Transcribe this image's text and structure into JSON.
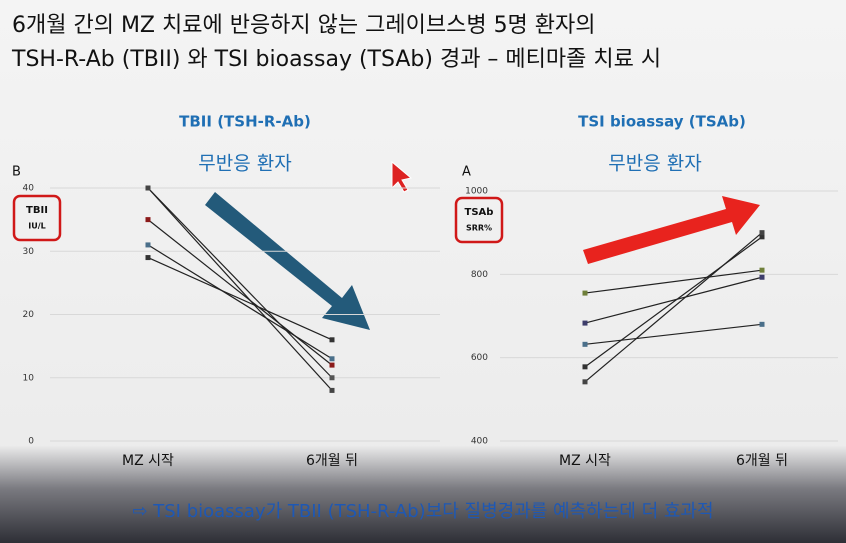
{
  "title_lines": [
    "6개월 간의 MZ 치료에 반응하지 않는 그레이브스병 5명 환자의",
    "TSH-R-Ab (TBII) 와 TSI bioassay (TSAb) 경과 –  메티마졸 치료 시"
  ],
  "footer": "⇨ TSI bioassay가 TBII (TSH-R-Ab)보다 질병경과를 예측하는데 더 효과적",
  "chart_data": [
    {
      "type": "line",
      "panel_label": "B",
      "title": "TBII (TSH-R-Ab)",
      "annotation": "무반응 환자",
      "y_label": [
        "TBII",
        "IU/L"
      ],
      "categories": [
        "MZ 시작",
        "6개월 뒤"
      ],
      "ylim": [
        0,
        40
      ],
      "yticks": [
        0,
        10,
        20,
        30,
        40
      ],
      "grid": true,
      "series": [
        {
          "color": "#555555",
          "values": [
            40,
            10
          ]
        },
        {
          "color": "#444444",
          "values": [
            40,
            8
          ]
        },
        {
          "color": "#8b1a1a",
          "values": [
            35,
            12
          ]
        },
        {
          "color": "#4a6f8a",
          "values": [
            31,
            13
          ]
        },
        {
          "color": "#333333",
          "values": [
            29,
            16
          ]
        }
      ]
    },
    {
      "type": "line",
      "panel_label": "A",
      "title": "TSI bioassay (TSAb)",
      "annotation": "무반응 환자",
      "y_label": [
        "TSAb",
        "SRR%"
      ],
      "categories": [
        "MZ 시작",
        "6개월 뒤"
      ],
      "ylim": [
        400,
        1000
      ],
      "yticks": [
        400,
        600,
        800,
        1000
      ],
      "grid": true,
      "series": [
        {
          "color": "#6f7f3a",
          "values": [
            755,
            810
          ]
        },
        {
          "color": "#3d3d6b",
          "values": [
            683,
            793
          ]
        },
        {
          "color": "#4a6f8a",
          "values": [
            632,
            680
          ]
        },
        {
          "color": "#333333",
          "values": [
            578,
            890
          ]
        },
        {
          "color": "#444444",
          "values": [
            542,
            900
          ]
        }
      ]
    }
  ]
}
